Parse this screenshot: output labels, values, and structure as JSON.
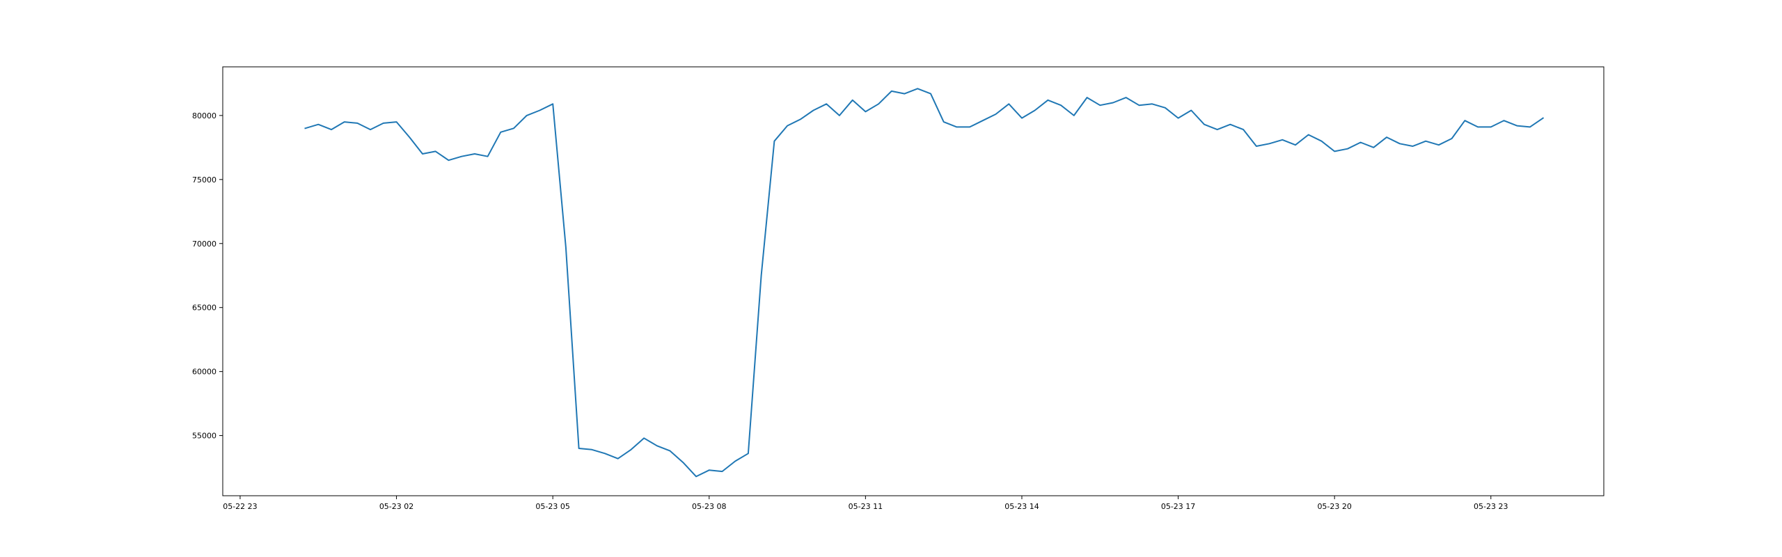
{
  "chart_data": {
    "type": "line",
    "title": "",
    "xlabel": "",
    "ylabel": "",
    "x_axis_kind": "datetime",
    "xlim": [
      "2025-05-22 22:40",
      "2025-05-24 01:10"
    ],
    "ylim": [
      50300,
      83800
    ],
    "x_ticks": [
      {
        "value": "2025-05-22 23:00",
        "label": "05-22 23"
      },
      {
        "value": "2025-05-23 02:00",
        "label": "05-23 02"
      },
      {
        "value": "2025-05-23 05:00",
        "label": "05-23 05"
      },
      {
        "value": "2025-05-23 08:00",
        "label": "05-23 08"
      },
      {
        "value": "2025-05-23 11:00",
        "label": "05-23 11"
      },
      {
        "value": "2025-05-23 14:00",
        "label": "05-23 14"
      },
      {
        "value": "2025-05-23 17:00",
        "label": "05-23 17"
      },
      {
        "value": "2025-05-23 20:00",
        "label": "05-23 20"
      },
      {
        "value": "2025-05-23 23:00",
        "label": "05-23 23"
      }
    ],
    "y_ticks": [
      {
        "value": 55000,
        "label": "55000"
      },
      {
        "value": 60000,
        "label": "60000"
      },
      {
        "value": 65000,
        "label": "65000"
      },
      {
        "value": 70000,
        "label": "70000"
      },
      {
        "value": 75000,
        "label": "75000"
      },
      {
        "value": 80000,
        "label": "80000"
      }
    ],
    "grid": false,
    "legend": "none",
    "colors": {
      "line": "#1f77b4",
      "axes": "#000000",
      "background": "#ffffff"
    },
    "series": [
      {
        "x": [
          "2025-05-23 00:15",
          "2025-05-23 00:30",
          "2025-05-23 00:45",
          "2025-05-23 01:00",
          "2025-05-23 01:15",
          "2025-05-23 01:30",
          "2025-05-23 01:45",
          "2025-05-23 02:00",
          "2025-05-23 02:15",
          "2025-05-23 02:30",
          "2025-05-23 02:45",
          "2025-05-23 03:00",
          "2025-05-23 03:15",
          "2025-05-23 03:30",
          "2025-05-23 03:45",
          "2025-05-23 04:00",
          "2025-05-23 04:15",
          "2025-05-23 04:30",
          "2025-05-23 04:45",
          "2025-05-23 05:00",
          "2025-05-23 05:15",
          "2025-05-23 05:30",
          "2025-05-23 05:45",
          "2025-05-23 06:00",
          "2025-05-23 06:15",
          "2025-05-23 06:30",
          "2025-05-23 06:45",
          "2025-05-23 07:00",
          "2025-05-23 07:15",
          "2025-05-23 07:30",
          "2025-05-23 07:45",
          "2025-05-23 08:00",
          "2025-05-23 08:15",
          "2025-05-23 08:30",
          "2025-05-23 08:45",
          "2025-05-23 09:00",
          "2025-05-23 09:15",
          "2025-05-23 09:30",
          "2025-05-23 09:45",
          "2025-05-23 10:00",
          "2025-05-23 10:15",
          "2025-05-23 10:30",
          "2025-05-23 10:45",
          "2025-05-23 11:00",
          "2025-05-23 11:15",
          "2025-05-23 11:30",
          "2025-05-23 11:45",
          "2025-05-23 12:00",
          "2025-05-23 12:15",
          "2025-05-23 12:30",
          "2025-05-23 12:45",
          "2025-05-23 13:00",
          "2025-05-23 13:15",
          "2025-05-23 13:30",
          "2025-05-23 13:45",
          "2025-05-23 14:00",
          "2025-05-23 14:15",
          "2025-05-23 14:30",
          "2025-05-23 14:45",
          "2025-05-23 15:00",
          "2025-05-23 15:15",
          "2025-05-23 15:30",
          "2025-05-23 15:45",
          "2025-05-23 16:00",
          "2025-05-23 16:15",
          "2025-05-23 16:30",
          "2025-05-23 16:45",
          "2025-05-23 17:00",
          "2025-05-23 17:15",
          "2025-05-23 17:30",
          "2025-05-23 17:45",
          "2025-05-23 18:00",
          "2025-05-23 18:15",
          "2025-05-23 18:30",
          "2025-05-23 18:45",
          "2025-05-23 19:00",
          "2025-05-23 19:15",
          "2025-05-23 19:30",
          "2025-05-23 19:45",
          "2025-05-23 20:00",
          "2025-05-23 20:15",
          "2025-05-23 20:30",
          "2025-05-23 20:45",
          "2025-05-23 21:00",
          "2025-05-23 21:15",
          "2025-05-23 21:30",
          "2025-05-23 21:45",
          "2025-05-23 22:00",
          "2025-05-23 22:15",
          "2025-05-23 22:30",
          "2025-05-23 22:45",
          "2025-05-23 23:00",
          "2025-05-23 23:15",
          "2025-05-23 23:30",
          "2025-05-23 23:45",
          "2025-05-24 00:00"
        ],
        "y": [
          79000,
          79300,
          78900,
          79500,
          79400,
          78900,
          79400,
          79500,
          78300,
          77000,
          77200,
          76500,
          76800,
          77000,
          76800,
          78700,
          79000,
          80000,
          80400,
          80900,
          69700,
          54000,
          53900,
          53600,
          53200,
          53900,
          54800,
          54200,
          53800,
          52900,
          51800,
          52300,
          52200,
          53000,
          53600,
          67500,
          78000,
          79200,
          79700,
          80400,
          80900,
          80000,
          81200,
          80300,
          80900,
          81900,
          81700,
          82100,
          81700,
          79500,
          79100,
          79100,
          79600,
          80100,
          80900,
          79800,
          80400,
          81200,
          80800,
          80000,
          81400,
          80800,
          81000,
          81400,
          80800,
          80900,
          80600,
          79800,
          80400,
          79300,
          78900,
          79300,
          78900,
          77600,
          77800,
          78100,
          77700,
          78500,
          78000,
          77200,
          77400,
          77900,
          77500,
          78300,
          77800,
          77600,
          78000,
          77700,
          78200,
          79600,
          79100,
          79100,
          79600,
          79200,
          79100,
          79800
        ]
      }
    ]
  }
}
